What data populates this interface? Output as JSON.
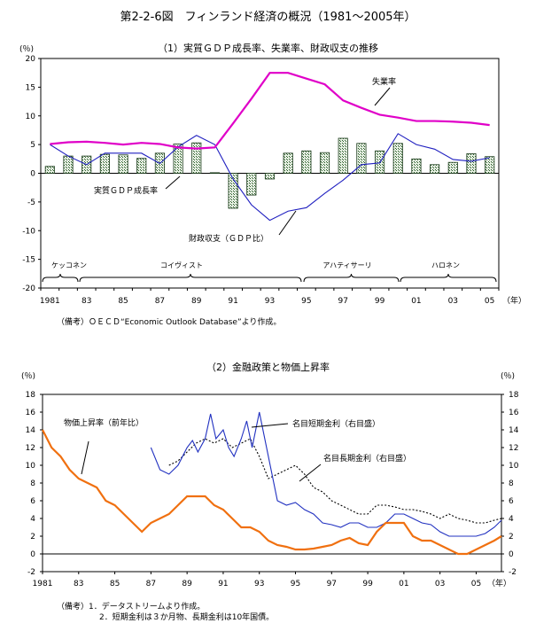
{
  "title": "第2-2-6図　フィンランド経済の概況（1981～2005年）",
  "colors": {
    "unemployment": "#e000c8",
    "fiscal": "#2020c0",
    "short_rate": "#2030c0",
    "inflation": "#f07010"
  },
  "chart_data": [
    {
      "type": "bar",
      "title": "（1）実質ＧＤＰ成長率、失業率、財政収支の推移",
      "unit_label": "(％)",
      "x_unit": "（年）",
      "ylim": [
        -20,
        20
      ],
      "yticks": [
        "20",
        "15",
        "10",
        "5",
        "0",
        "-5",
        "-10",
        "-15",
        "-20"
      ],
      "xticks": [
        "1981",
        "83",
        "85",
        "87",
        "89",
        "91",
        "93",
        "95",
        "97",
        "99",
        "01",
        "03",
        "05"
      ],
      "categories": [
        "1981",
        "1982",
        "1983",
        "1984",
        "1985",
        "1986",
        "1987",
        "1988",
        "1989",
        "1990",
        "1991",
        "1992",
        "1993",
        "1994",
        "1995",
        "1996",
        "1997",
        "1998",
        "1999",
        "2000",
        "2001",
        "2002",
        "2003",
        "2004",
        "2005"
      ],
      "series": [
        {
          "name": "実質ＧＤＰ成長率",
          "type": "bar",
          "values": [
            1.2,
            3.0,
            3.0,
            3.3,
            3.2,
            2.6,
            3.5,
            5.1,
            5.3,
            0.1,
            -6.1,
            -3.8,
            -1.0,
            3.5,
            3.9,
            3.6,
            6.1,
            5.2,
            3.9,
            5.2,
            2.5,
            1.5,
            1.9,
            3.4,
            2.9
          ]
        },
        {
          "name": "失業率",
          "type": "line",
          "values": [
            5.1,
            5.4,
            5.5,
            5.3,
            5.0,
            5.3,
            5.1,
            4.5,
            4.3,
            4.5,
            8.7,
            13.0,
            17.5,
            17.5,
            16.5,
            15.5,
            12.7,
            11.4,
            10.2,
            9.7,
            9.1,
            9.1,
            9.0,
            8.8,
            8.4
          ]
        },
        {
          "name": "財政収支（ＧＤＰ比）",
          "type": "line",
          "values": [
            5.0,
            3.0,
            1.5,
            3.5,
            3.5,
            3.5,
            1.7,
            4.6,
            6.6,
            5.0,
            -1.0,
            -5.5,
            -8.2,
            -6.6,
            -6.0,
            -3.5,
            -1.2,
            1.5,
            1.8,
            6.9,
            5.0,
            4.2,
            2.4,
            2.1,
            2.7
          ]
        }
      ],
      "annotations": [
        "失業率",
        "実質ＧＤＰ成長率",
        "財政収支（ＧＤＰ比）"
      ],
      "periods": [
        "ケッコネン",
        "コイヴィスト",
        "アハティサーリ",
        "ハロネン"
      ],
      "note": "（備考）ＯＥＣＤ“Economic Outlook Database”より作成。"
    },
    {
      "type": "line",
      "title": "（2）金融政策と物価上昇率",
      "left_unit": "(％)",
      "right_unit": "(％)",
      "x_unit": "（年）",
      "ylim": [
        -2,
        18
      ],
      "yticks": [
        "18",
        "16",
        "14",
        "12",
        "10",
        "8",
        "6",
        "4",
        "2",
        "0",
        "-2"
      ],
      "xticks": [
        "1981",
        "83",
        "85",
        "87",
        "89",
        "91",
        "93",
        "95",
        "97",
        "99",
        "01",
        "03",
        "05"
      ],
      "series": [
        {
          "name": "物価上昇率（前年比）",
          "style": "solid-orange",
          "x": [
            1981.0,
            1981.5,
            1982.0,
            1982.5,
            1983.0,
            1983.5,
            1984.0,
            1984.5,
            1985.0,
            1985.5,
            1986.0,
            1986.5,
            1987.0,
            1987.5,
            1988.0,
            1988.5,
            1989.0,
            1989.5,
            1990.0,
            1990.5,
            1991.0,
            1991.5,
            1992.0,
            1992.5,
            1993.0,
            1993.5,
            1994.0,
            1994.5,
            1995.0,
            1995.5,
            1996.0,
            1996.5,
            1997.0,
            1997.5,
            1998.0,
            1998.5,
            1999.0,
            1999.5,
            2000.0,
            2000.5,
            2001.0,
            2001.5,
            2002.0,
            2002.5,
            2003.0,
            2003.5,
            2004.0,
            2004.5,
            2005.0,
            2005.5,
            2006.0,
            2006.4
          ],
          "values": [
            14.0,
            12.0,
            11.0,
            9.5,
            8.5,
            8.0,
            7.5,
            6.0,
            5.5,
            4.5,
            3.5,
            2.5,
            3.5,
            4.0,
            4.5,
            5.5,
            6.5,
            6.5,
            6.5,
            5.5,
            5.0,
            4.0,
            3.0,
            3.0,
            2.5,
            1.5,
            1.0,
            0.8,
            0.5,
            0.5,
            0.6,
            0.8,
            1.0,
            1.5,
            1.8,
            1.2,
            1.0,
            2.5,
            3.5,
            3.5,
            3.5,
            2.0,
            1.5,
            1.5,
            1.0,
            0.5,
            0.0,
            0.0,
            0.5,
            1.0,
            1.5,
            2.0
          ]
        },
        {
          "name": "名目短期金利（右目盛）",
          "style": "solid-blue",
          "x": [
            1987.0,
            1987.5,
            1988.0,
            1988.5,
            1989.0,
            1989.3,
            1989.6,
            1990.0,
            1990.3,
            1990.6,
            1991.0,
            1991.3,
            1991.6,
            1992.0,
            1992.3,
            1992.6,
            1993.0,
            1993.5,
            1994.0,
            1994.5,
            1995.0,
            1995.5,
            1996.0,
            1996.5,
            1997.0,
            1997.5,
            1998.0,
            1998.5,
            1999.0,
            1999.5,
            2000.0,
            2000.5,
            2001.0,
            2001.5,
            2002.0,
            2002.5,
            2003.0,
            2003.5,
            2004.0,
            2004.5,
            2005.0,
            2005.5,
            2006.0,
            2006.4
          ],
          "values": [
            12.0,
            9.5,
            9.0,
            10.0,
            12.0,
            12.8,
            11.5,
            13.0,
            15.8,
            13.0,
            14.0,
            12.0,
            11.0,
            13.0,
            15.0,
            12.0,
            16.0,
            11.0,
            6.0,
            5.5,
            5.8,
            5.0,
            4.5,
            3.5,
            3.3,
            3.0,
            3.5,
            3.5,
            3.0,
            3.0,
            3.5,
            4.5,
            4.5,
            4.0,
            3.5,
            3.3,
            2.5,
            2.0,
            2.0,
            2.0,
            2.0,
            2.3,
            3.0,
            3.8
          ]
        },
        {
          "name": "名目長期金利（右目盛）",
          "style": "dotted-black",
          "x": [
            1988.0,
            1988.5,
            1989.0,
            1989.5,
            1990.0,
            1990.5,
            1991.0,
            1991.5,
            1992.0,
            1992.5,
            1993.0,
            1993.5,
            1994.0,
            1994.5,
            1995.0,
            1995.5,
            1996.0,
            1996.5,
            1997.0,
            1997.5,
            1998.0,
            1998.5,
            1999.0,
            1999.5,
            2000.0,
            2000.5,
            2001.0,
            2001.5,
            2002.0,
            2002.5,
            2003.0,
            2003.5,
            2004.0,
            2004.5,
            2005.0,
            2005.5,
            2006.0,
            2006.4
          ],
          "values": [
            10.0,
            10.5,
            11.5,
            12.5,
            13.0,
            12.5,
            13.0,
            12.0,
            12.5,
            13.0,
            11.0,
            8.5,
            9.0,
            9.5,
            10.0,
            9.0,
            7.5,
            7.0,
            6.0,
            5.5,
            5.0,
            4.5,
            4.5,
            5.5,
            5.5,
            5.3,
            5.0,
            5.0,
            4.8,
            4.5,
            4.0,
            4.5,
            4.0,
            3.8,
            3.5,
            3.5,
            3.8,
            4.0
          ]
        }
      ],
      "annotations": [
        "物価上昇率（前年比）",
        "名目短期金利（右目盛）",
        "名目長期金利（右目盛）"
      ],
      "notes": [
        "（備考）1．データストリームより作成。",
        "2．短期金利は３か月物、長期金利は10年国債。"
      ]
    }
  ]
}
